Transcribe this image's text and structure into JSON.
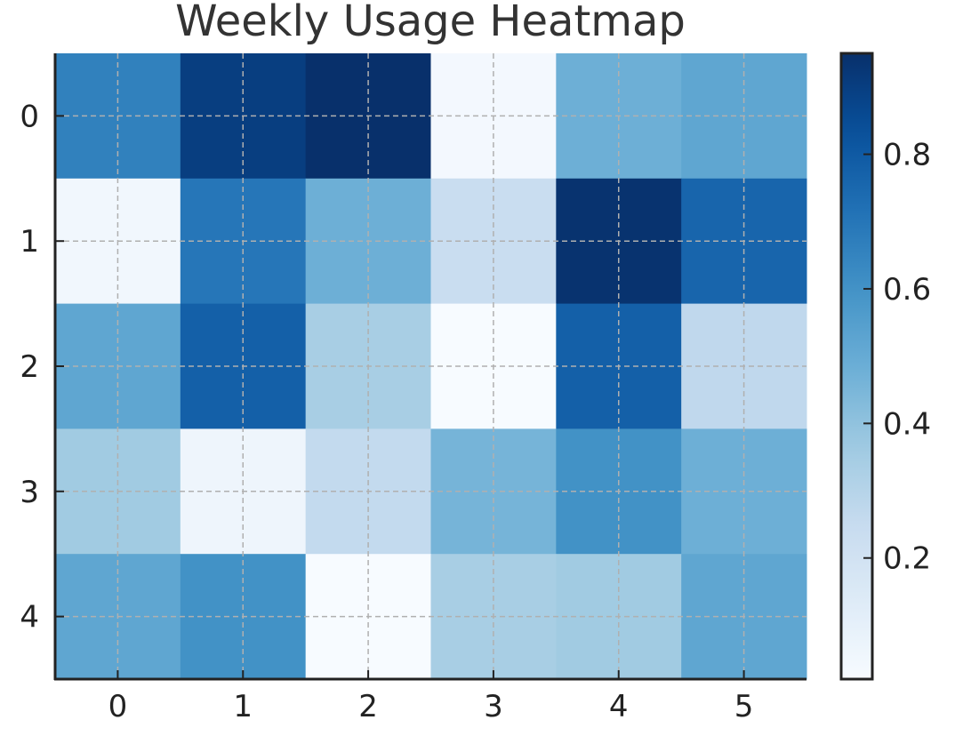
{
  "chart_data": {
    "type": "heatmap",
    "title": "Weekly Usage Heatmap",
    "xlabel": "",
    "ylabel": "",
    "x_categories": [
      "0",
      "1",
      "2",
      "3",
      "4",
      "5"
    ],
    "y_categories": [
      "0",
      "1",
      "2",
      "3",
      "4"
    ],
    "values": [
      [
        0.66,
        0.9,
        0.95,
        0.04,
        0.48,
        0.52
      ],
      [
        0.05,
        0.7,
        0.48,
        0.24,
        0.94,
        0.76
      ],
      [
        0.52,
        0.78,
        0.34,
        0.02,
        0.78,
        0.27
      ],
      [
        0.36,
        0.06,
        0.26,
        0.46,
        0.6,
        0.48
      ],
      [
        0.52,
        0.6,
        0.02,
        0.34,
        0.36,
        0.52
      ]
    ],
    "colorbar": {
      "range": [
        0.02,
        0.95
      ],
      "ticks": [
        "0.2",
        "0.4",
        "0.6",
        "0.8"
      ]
    },
    "colormap": "Blues",
    "grid": true
  }
}
